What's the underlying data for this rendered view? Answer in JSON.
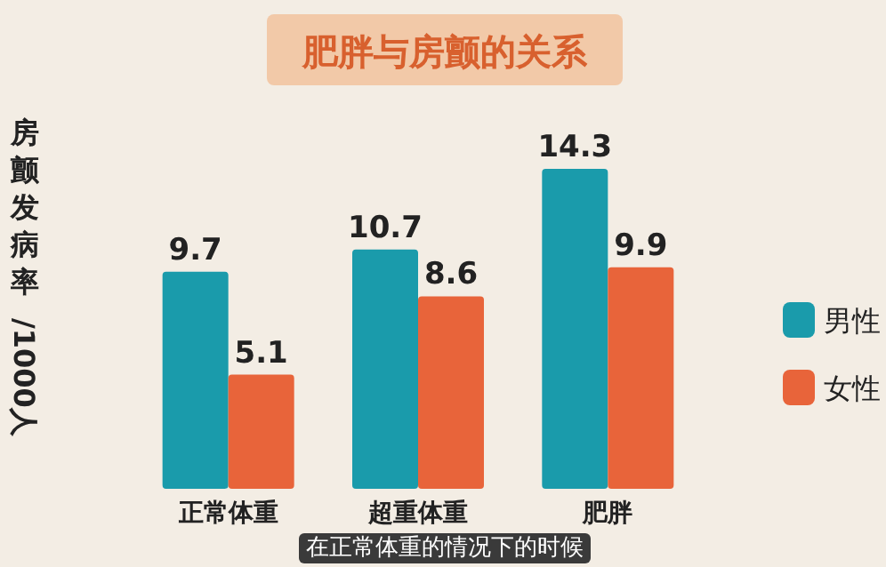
{
  "chart_data": {
    "type": "bar",
    "title": "肥胖与房颤的关系",
    "ylabel": "房颤发病率 /1000人",
    "categories": [
      "正常体重",
      "超重体重",
      "肥胖"
    ],
    "series": [
      {
        "name": "男性",
        "color": "#1a9bab",
        "values": [
          9.7,
          10.7,
          14.3
        ]
      },
      {
        "name": "女性",
        "color": "#e8643a",
        "values": [
          5.1,
          8.6,
          9.9
        ]
      }
    ],
    "data_labels": true,
    "legend": "right",
    "grid": false,
    "annotations": [
      "在正常体重的情况下的时候"
    ]
  }
}
